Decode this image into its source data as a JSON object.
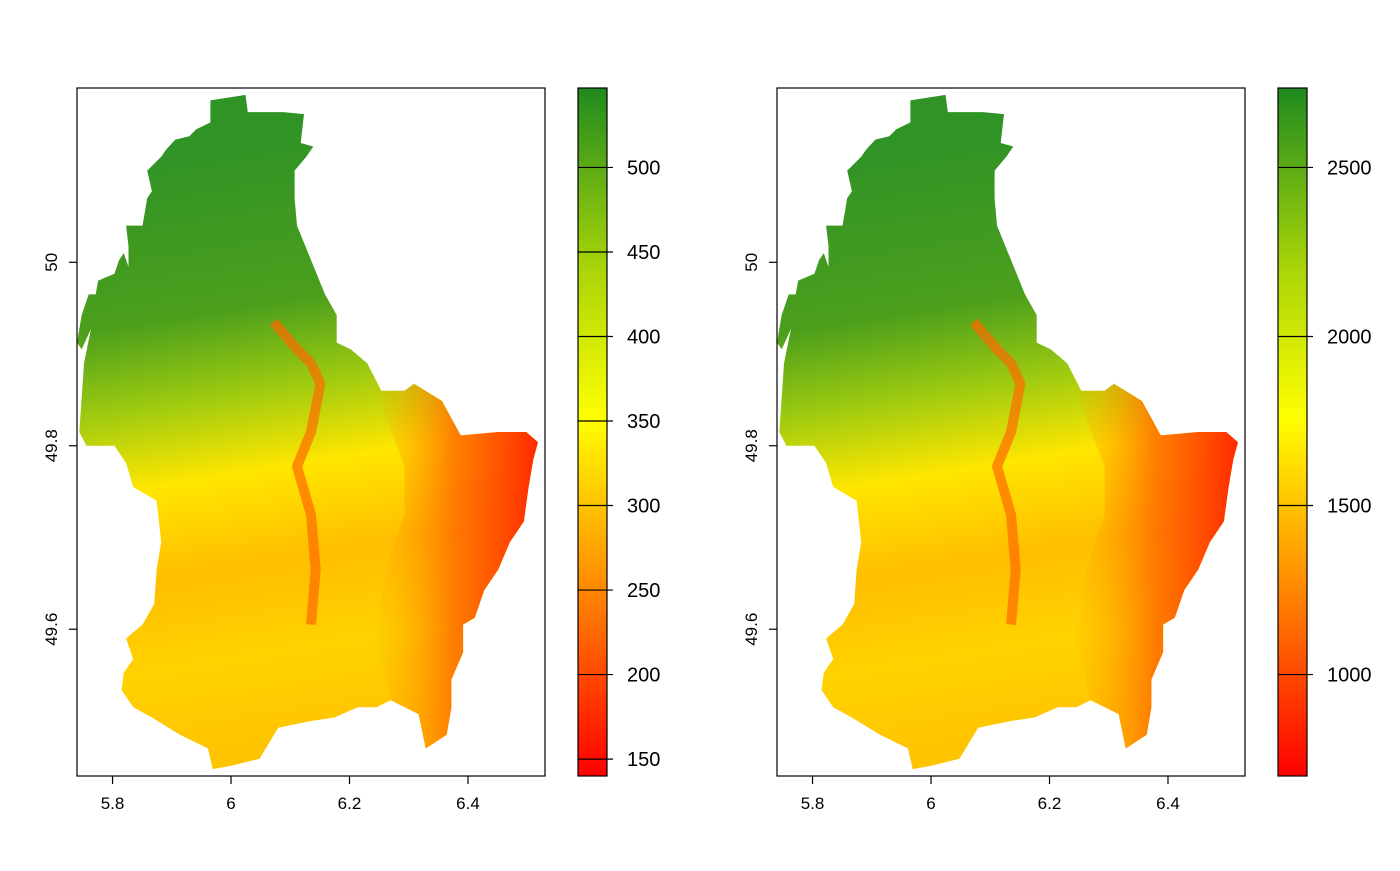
{
  "panels": [
    {
      "name": "left-map",
      "x_ticks": [
        "5.8",
        "6",
        "6.2",
        "6.4"
      ],
      "x_tick_values": [
        5.8,
        6.0,
        6.2,
        6.4
      ],
      "y_ticks": [
        "49.6",
        "49.8",
        "50"
      ],
      "y_tick_values": [
        49.6,
        49.8,
        50.0
      ],
      "xlim": [
        5.74,
        6.53
      ],
      "ylim": [
        49.44,
        50.19
      ],
      "legend": {
        "labels": [
          "150",
          "200",
          "250",
          "300",
          "350",
          "400",
          "450",
          "500"
        ],
        "values": [
          150,
          200,
          250,
          300,
          350,
          400,
          450,
          500
        ],
        "range": [
          140,
          547
        ]
      }
    },
    {
      "name": "right-map",
      "x_ticks": [
        "5.8",
        "6",
        "6.2",
        "6.4"
      ],
      "x_tick_values": [
        5.8,
        6.0,
        6.2,
        6.4
      ],
      "y_ticks": [
        "49.6",
        "49.8",
        "50"
      ],
      "y_tick_values": [
        49.6,
        49.8,
        50.0
      ],
      "xlim": [
        5.74,
        6.53
      ],
      "ylim": [
        49.44,
        50.19
      ],
      "legend": {
        "labels": [
          "1000",
          "1500",
          "2000",
          "2500"
        ],
        "values": [
          1000,
          1500,
          2000,
          2500
        ],
        "range": [
          700,
          2735
        ]
      }
    }
  ],
  "colors": {
    "low": "#ff0000",
    "mid_low": "#ff8c00",
    "mid": "#ffff00",
    "mid_high": "#a8d408",
    "high": "#1f8a1f",
    "axis": "#000000",
    "background": "#ffffff"
  }
}
